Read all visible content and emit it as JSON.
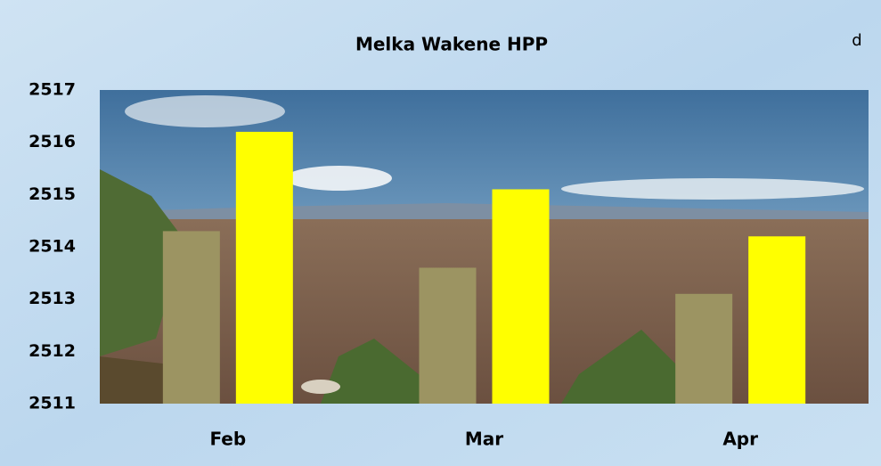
{
  "chart_data": {
    "type": "bar",
    "title": "Melka Wakene HPP",
    "annotation": "d",
    "categories": [
      "Feb",
      "Mar",
      "Apr"
    ],
    "series": [
      {
        "color": "#9c9462",
        "values": [
          2514.3,
          2513.6,
          2513.1
        ]
      },
      {
        "color": "#ffff00",
        "values": [
          2516.2,
          2515.1,
          2514.2
        ]
      }
    ],
    "ylim": [
      2511,
      2517
    ],
    "yticks": [
      2511,
      2512,
      2513,
      2514,
      2515,
      2516,
      2517
    ],
    "grid": false
  }
}
